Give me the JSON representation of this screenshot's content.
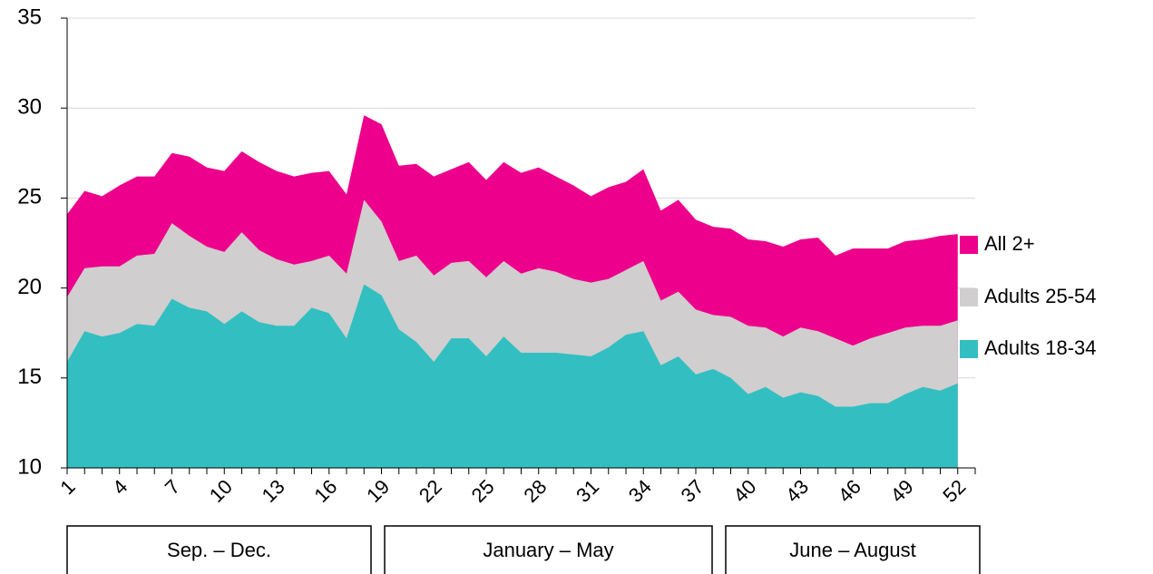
{
  "chart_data": {
    "type": "area",
    "categories": [
      "1",
      null,
      null,
      "4",
      null,
      null,
      "7",
      null,
      null,
      "10",
      null,
      null,
      "13",
      null,
      null,
      "16",
      null,
      null,
      "19",
      null,
      null,
      "22",
      null,
      null,
      "25",
      null,
      null,
      "28",
      null,
      null,
      "31",
      null,
      null,
      "34",
      null,
      null,
      "37",
      null,
      null,
      "40",
      null,
      null,
      "43",
      null,
      null,
      "46",
      null,
      null,
      "49",
      null,
      null,
      "52"
    ],
    "series": [
      {
        "name": "All 2+",
        "color": "#ec008c",
        "values": [
          24.1,
          25.4,
          25.1,
          25.7,
          26.2,
          26.2,
          27.5,
          27.3,
          26.7,
          26.5,
          27.6,
          27.0,
          26.5,
          26.2,
          26.4,
          26.5,
          25.2,
          29.6,
          29.1,
          26.8,
          26.9,
          26.2,
          26.6,
          27.0,
          26.0,
          27.0,
          26.4,
          26.7,
          26.2,
          25.7,
          25.1,
          25.6,
          25.9,
          26.6,
          24.3,
          24.9,
          23.8,
          23.4,
          23.3,
          22.7,
          22.6,
          22.3,
          22.7,
          22.8,
          21.8,
          22.2,
          22.2,
          22.2,
          22.6,
          22.7,
          22.9,
          23.0
        ]
      },
      {
        "name": "Adults 25-54",
        "color": "#d0cece",
        "values": [
          19.5,
          21.1,
          21.2,
          21.2,
          21.8,
          21.9,
          23.6,
          22.9,
          22.3,
          22.0,
          23.1,
          22.1,
          21.6,
          21.3,
          21.5,
          21.8,
          20.8,
          24.9,
          23.7,
          21.5,
          21.8,
          20.7,
          21.4,
          21.5,
          20.6,
          21.5,
          20.8,
          21.1,
          20.9,
          20.5,
          20.3,
          20.5,
          21.0,
          21.5,
          19.3,
          19.8,
          18.8,
          18.5,
          18.4,
          17.9,
          17.8,
          17.3,
          17.8,
          17.6,
          17.2,
          16.8,
          17.2,
          17.5,
          17.8,
          17.9,
          17.9,
          18.2
        ]
      },
      {
        "name": "Adults 18-34",
        "color": "#33bfc1",
        "values": [
          15.9,
          17.6,
          17.3,
          17.5,
          18.0,
          17.9,
          19.4,
          18.9,
          18.7,
          18.0,
          18.7,
          18.1,
          17.9,
          17.9,
          18.9,
          18.6,
          17.2,
          20.2,
          19.6,
          17.7,
          17.0,
          15.9,
          17.2,
          17.2,
          16.2,
          17.3,
          16.4,
          16.4,
          16.4,
          16.3,
          16.2,
          16.7,
          17.4,
          17.6,
          15.7,
          16.2,
          15.2,
          15.5,
          15.0,
          14.1,
          14.5,
          13.9,
          14.2,
          14.0,
          13.4,
          13.4,
          13.6,
          13.6,
          14.1,
          14.5,
          14.3,
          14.7
        ]
      }
    ],
    "groups": [
      "Sep. – Dec.",
      "January – May",
      "June – August"
    ],
    "ylim": [
      10,
      35
    ],
    "yticks": [
      10,
      15,
      20,
      25,
      30,
      35
    ],
    "grid": true,
    "legend": "right"
  }
}
